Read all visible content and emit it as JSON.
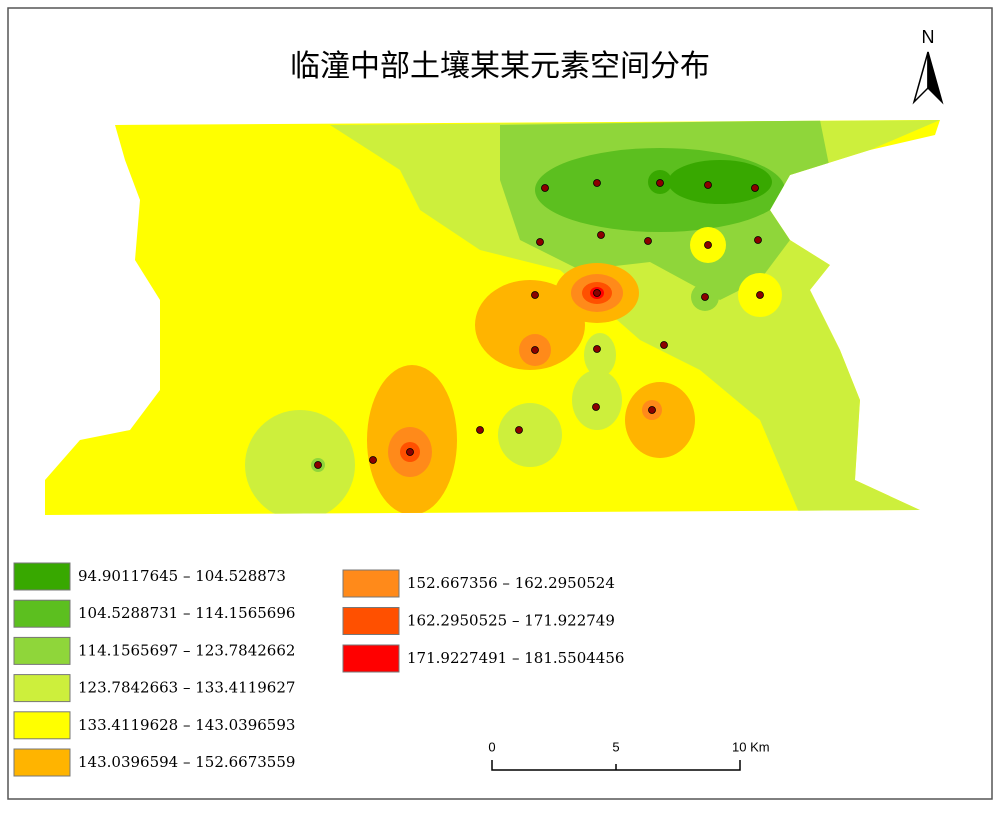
{
  "title": "临潼中部土壤某某元素空间分布",
  "north_label": "N",
  "legend": {
    "items": [
      {
        "label": "94.90117645 – 104.528873",
        "color": "#38a800"
      },
      {
        "label": "104.5288731 – 114.1565696",
        "color": "#5cbf1f"
      },
      {
        "label": "114.1565697 – 123.7842662",
        "color": "#8fd63a"
      },
      {
        "label": "123.7842663 – 133.4119627",
        "color": "#cdef3c"
      },
      {
        "label": "133.4119628 – 143.0396593",
        "color": "#ffff00"
      },
      {
        "label": "143.0396594 – 152.6673559",
        "color": "#ffb400"
      },
      {
        "label": "152.667356 – 162.2950524",
        "color": "#ff8a1a"
      },
      {
        "label": "162.2950525 – 171.922749",
        "color": "#ff5000"
      },
      {
        "label": "171.9227491 – 181.5504456",
        "color": "#ff0000"
      }
    ]
  },
  "scale_bar": {
    "labels": [
      "0",
      "5",
      "10 Km"
    ]
  }
}
